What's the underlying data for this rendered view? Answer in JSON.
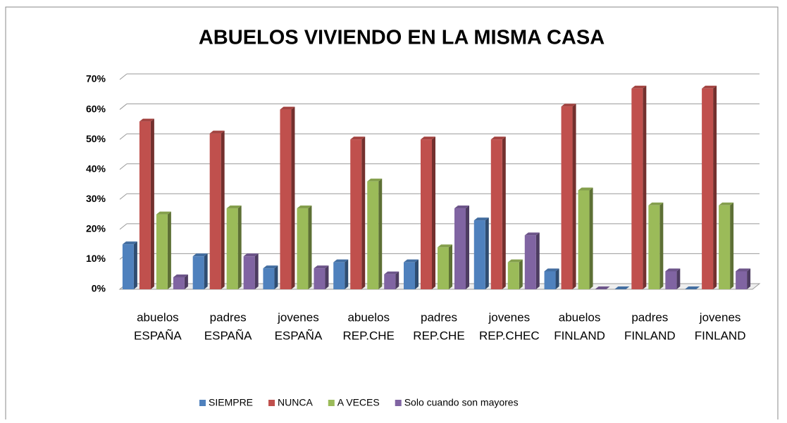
{
  "chart_data": {
    "type": "bar3d",
    "title": "ABUELOS VIVIENDO EN LA MISMA CASA",
    "categories": [
      [
        "abuelos",
        "ESPAÑA"
      ],
      [
        "padres",
        "ESPAÑA"
      ],
      [
        "jovenes",
        "ESPAÑA"
      ],
      [
        "abuelos",
        "REP.CHE"
      ],
      [
        "padres",
        "REP.CHE"
      ],
      [
        "jovenes",
        "REP.CHEC"
      ],
      [
        "abuelos",
        "FINLAND"
      ],
      [
        "padres",
        "FINLAND"
      ],
      [
        "jovenes",
        "FINLAND"
      ]
    ],
    "series": [
      {
        "name": "SIEMPRE",
        "color": "#4f81bd",
        "values": [
          15,
          11,
          7,
          9,
          9,
          23,
          6,
          0,
          0
        ]
      },
      {
        "name": "NUNCA",
        "color": "#c0504d",
        "values": [
          56,
          52,
          60,
          50,
          50,
          50,
          61,
          67,
          67
        ]
      },
      {
        "name": "A VECES",
        "color": "#9bbb59",
        "values": [
          25,
          27,
          27,
          36,
          14,
          9,
          33,
          28,
          28
        ]
      },
      {
        "name": "Solo cuando son mayores",
        "color": "#8064a2",
        "values": [
          4,
          11,
          7,
          5,
          27,
          18,
          0,
          6,
          6
        ]
      }
    ],
    "ylim": [
      0,
      70
    ],
    "yticks": [
      {
        "value": 0,
        "label": "0%"
      },
      {
        "value": 10,
        "label": "10%"
      },
      {
        "value": 20,
        "label": "20%"
      },
      {
        "value": 30,
        "label": "30%"
      },
      {
        "value": 40,
        "label": "40%"
      },
      {
        "value": 50,
        "label": "50%"
      },
      {
        "value": 60,
        "label": "60%"
      },
      {
        "value": 70,
        "label": "70%"
      }
    ],
    "grid": true,
    "legend": "bottom"
  }
}
